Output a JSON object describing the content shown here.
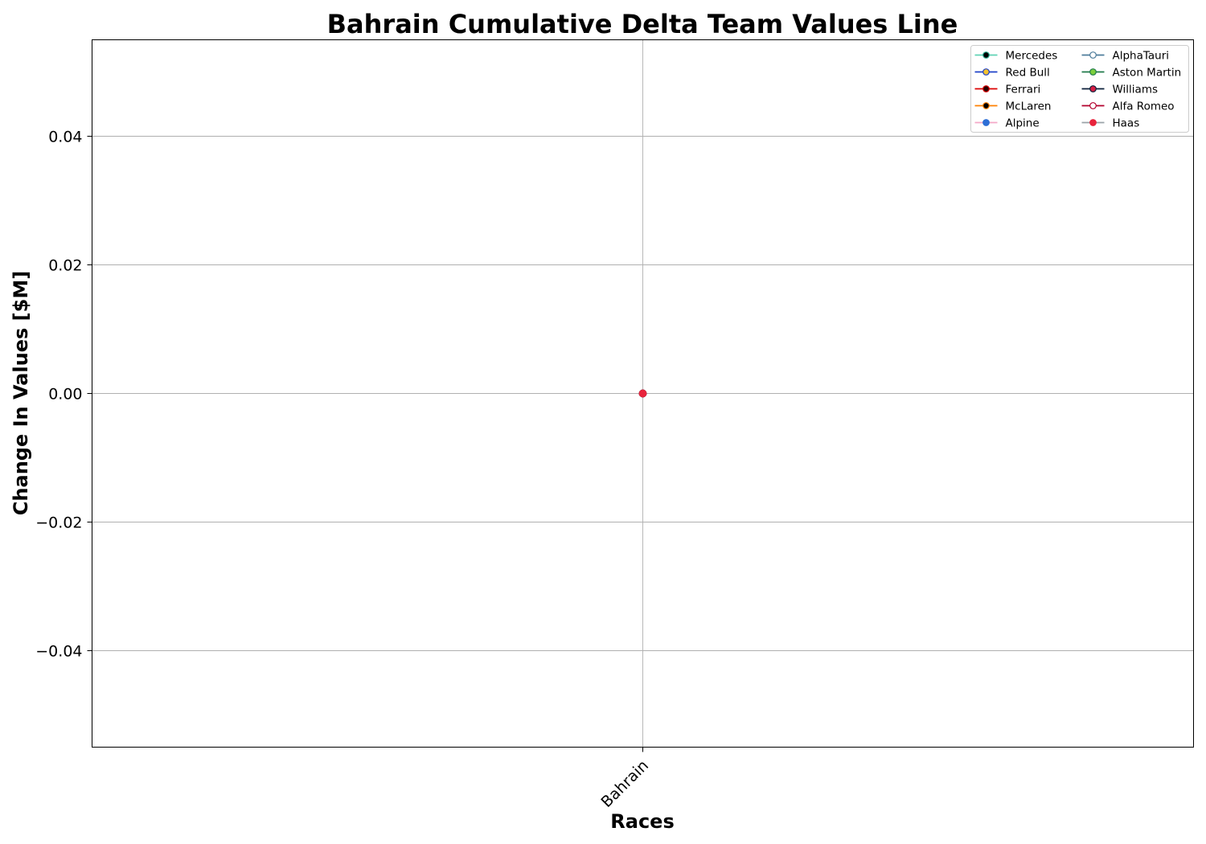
{
  "chart_data": {
    "type": "line",
    "title": "Bahrain Cumulative Delta Team Values Line",
    "xlabel": "Races",
    "ylabel": "Change In Values [$M]",
    "categories": [
      "Bahrain"
    ],
    "ylim": [
      -0.055,
      0.055
    ],
    "yticks": [
      -0.04,
      -0.02,
      0.0,
      0.02,
      0.04
    ],
    "ytick_labels": [
      "−0.04",
      "−0.02",
      "0.00",
      "0.02",
      "0.04"
    ],
    "grid": true,
    "legend_position": "top-right",
    "legend_columns": 2,
    "series": [
      {
        "name": "Mercedes",
        "values": [
          0
        ],
        "line_color": "#5fd3b5",
        "marker_face": "#000000",
        "marker_edge": "#2aa88a"
      },
      {
        "name": "Red Bull",
        "values": [
          0
        ],
        "line_color": "#1e41c8",
        "marker_face": "#f2c12e",
        "marker_edge": "#1e41c8"
      },
      {
        "name": "Ferrari",
        "values": [
          0
        ],
        "line_color": "#dc0000",
        "marker_face": "#2a0000",
        "marker_edge": "#dc0000"
      },
      {
        "name": "McLaren",
        "values": [
          0
        ],
        "line_color": "#ff8000",
        "marker_face": "#000000",
        "marker_edge": "#ff8000"
      },
      {
        "name": "Alpine",
        "values": [
          0
        ],
        "line_color": "#f4a8c8",
        "marker_face": "#2d6fd6",
        "marker_edge": "#2d6fd6"
      },
      {
        "name": "AlphaTauri",
        "values": [
          0
        ],
        "line_color": "#4e7c9b",
        "marker_face": "#ffffff",
        "marker_edge": "#4e7c9b"
      },
      {
        "name": "Aston Martin",
        "values": [
          0
        ],
        "line_color": "#1f7a4a",
        "marker_face": "#7ccf3c",
        "marker_edge": "#1f7a4a"
      },
      {
        "name": "Williams",
        "values": [
          0
        ],
        "line_color": "#0b1f3a",
        "marker_face": "#d81e43",
        "marker_edge": "#0b1f3a"
      },
      {
        "name": "Alfa Romeo",
        "values": [
          0
        ],
        "line_color": "#b3002d",
        "marker_face": "#ffffff",
        "marker_edge": "#b3002d"
      },
      {
        "name": "Haas",
        "values": [
          0
        ],
        "line_color": "#9aa3a8",
        "marker_face": "#e8243c",
        "marker_edge": "#e8243c"
      }
    ]
  }
}
